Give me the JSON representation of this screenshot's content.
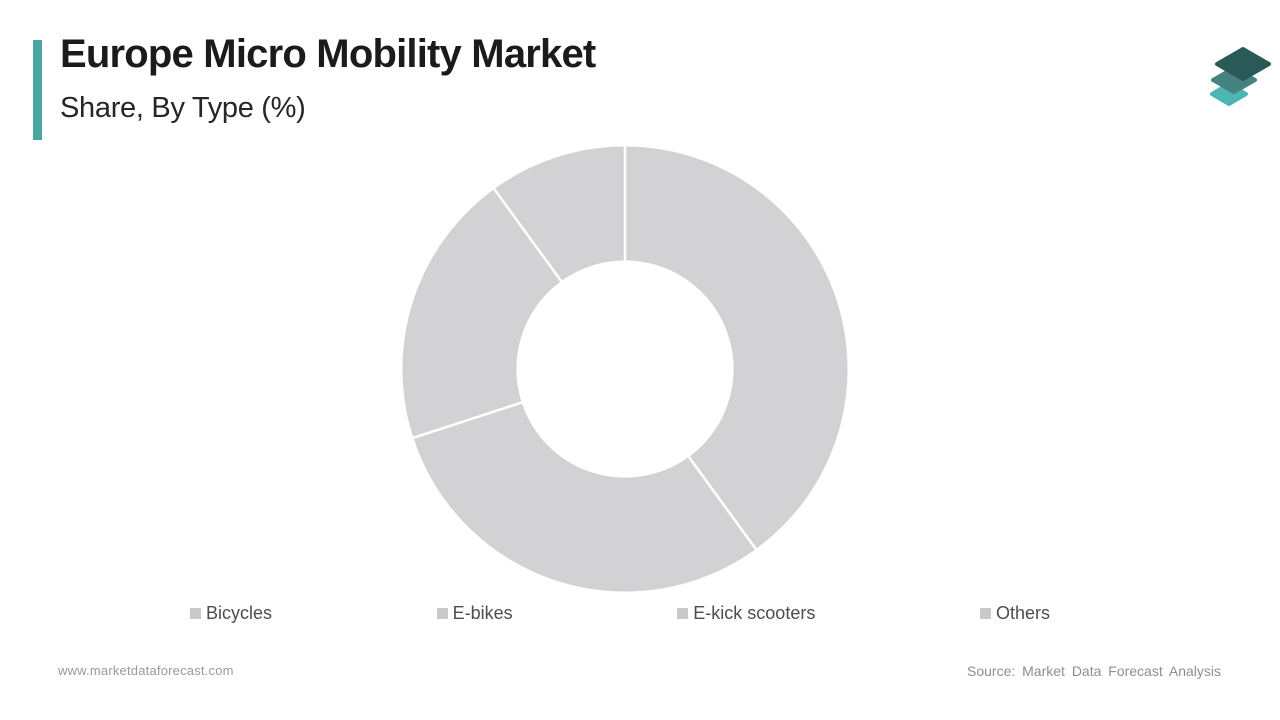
{
  "header": {
    "title": "Europe Micro Mobility Market",
    "subtitle": "Share, By Type (%)",
    "accent_color": "#4ba5a1"
  },
  "logo": {
    "name": "market-data-forecast-logo",
    "tile_colors": [
      "#4db6b2",
      "#44837f",
      "#2a5a57"
    ]
  },
  "chart_data": {
    "type": "pie",
    "subtype": "donut",
    "title": "Europe Micro Mobility Market Share, By Type (%)",
    "categories": [
      "Bicycles",
      "E-bikes",
      "E-kick scooters",
      "Others"
    ],
    "values": [
      40,
      30,
      20,
      10
    ],
    "unit": "%",
    "start_angle_deg": 0,
    "direction": "clockwise",
    "slice_color": "#d2d2d4",
    "divider_color": "#ffffff",
    "rim_color": "#c7c7c9",
    "inner_radius_ratio": 0.49,
    "legend_position": "bottom",
    "legend_marker_color": "#c9c9ca",
    "data_labels": "none"
  },
  "footer": {
    "website": "www.marketdataforecast.com",
    "source": "Source: Market Data Forecast Analysis"
  }
}
